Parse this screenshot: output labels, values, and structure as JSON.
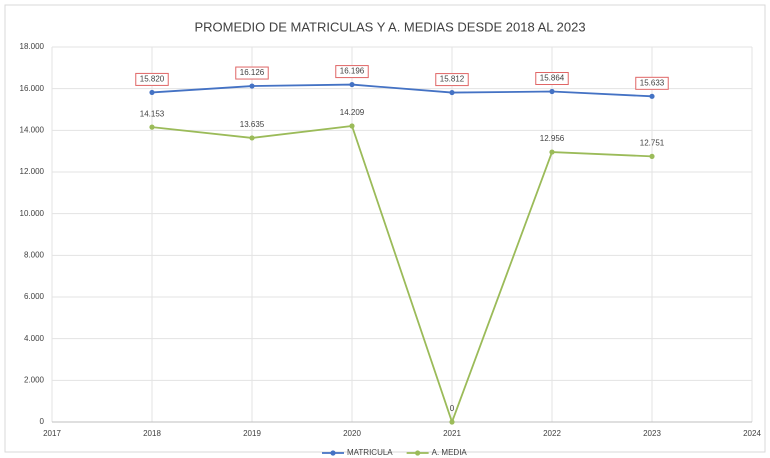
{
  "chart_data": {
    "type": "line",
    "title": "PROMEDIO DE MATRICULAS Y A. MEDIAS DESDE 2018 AL 2023",
    "x": [
      2018,
      2019,
      2020,
      2021,
      2022,
      2023
    ],
    "xlim": [
      2017,
      2024
    ],
    "xticks": [
      2017,
      2018,
      2019,
      2020,
      2021,
      2022,
      2023,
      2024
    ],
    "ylim": [
      0,
      18000
    ],
    "yticks": [
      0,
      {
        "value": 2000,
        "label": "2.000"
      },
      {
        "value": 4000,
        "label": "4.000"
      },
      {
        "value": 6000,
        "label": "6.000"
      },
      {
        "value": 8000,
        "label": "8.000"
      },
      {
        "value": 10000,
        "label": "10.000"
      },
      {
        "value": 12000,
        "label": "12.000"
      },
      {
        "value": 14000,
        "label": "14.000"
      },
      {
        "value": 16000,
        "label": "16.000"
      },
      {
        "value": 18000,
        "label": "18.000"
      }
    ],
    "grid": true,
    "legend": "bottom",
    "series": [
      {
        "name": "MATRICULA",
        "color": "#4472c4",
        "values": [
          15820,
          16126,
          16196,
          15812,
          15864,
          15633
        ],
        "value_labels": [
          "15.820",
          "16.126",
          "16.196",
          "15.812",
          "15.864",
          "15.633"
        ]
      },
      {
        "name": "A. MEDIA",
        "color": "#9bbb59",
        "values": [
          14153,
          13635,
          14209,
          0,
          12956,
          12751
        ],
        "value_labels": [
          "14.153",
          "13.635",
          "14.209",
          "0",
          "12.956",
          "12.751"
        ]
      }
    ]
  }
}
